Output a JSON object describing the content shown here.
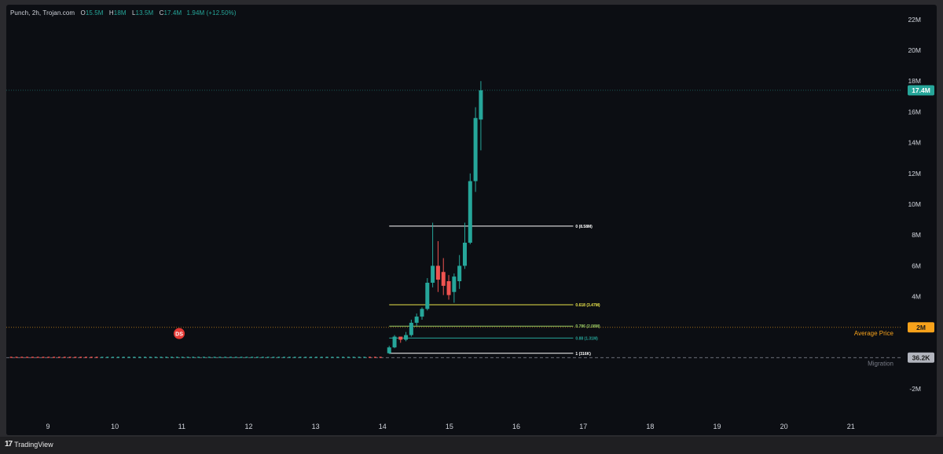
{
  "legend": {
    "symbol": "Punch, 2h, Trojan.com",
    "o_label": "O",
    "o_value": "15.5M",
    "h_label": "H",
    "h_value": "18M",
    "l_label": "L",
    "l_value": "13.5M",
    "c_label": "C",
    "c_value": "17.4M",
    "change": "1.94M (+12.50%)"
  },
  "colors": {
    "up": "#26a69a",
    "down": "#ef5350",
    "grid": "#1a1d24",
    "axis_text": "#d1d4dc",
    "avg_price": "#f7a21b",
    "migration": "#787b86",
    "fib_white": "#ffffff",
    "fib_yellow": "#e8e34a",
    "fib_lime": "#9ccc65",
    "fib_green": "#26a69a"
  },
  "price_axis": {
    "ticks": [
      {
        "label": "22M",
        "value": 22000000
      },
      {
        "label": "20M",
        "value": 20000000
      },
      {
        "label": "18M",
        "value": 18000000
      },
      {
        "label": "16M",
        "value": 16000000
      },
      {
        "label": "14M",
        "value": 14000000
      },
      {
        "label": "12M",
        "value": 12000000
      },
      {
        "label": "10M",
        "value": 10000000
      },
      {
        "label": "8M",
        "value": 8000000
      },
      {
        "label": "6M",
        "value": 6000000
      },
      {
        "label": "4M",
        "value": 4000000
      },
      {
        "label": "-2M",
        "value": -2000000
      }
    ],
    "current_price_label": "17.4M",
    "current_price_value": 17400000,
    "avg_price_badge": "2M",
    "avg_price_value": 2000000,
    "avg_price_text": "Average Price",
    "migration_badge": "36.2K",
    "migration_value": 36200,
    "migration_text": "Migration"
  },
  "time_axis": {
    "labels": [
      "9",
      "10",
      "11",
      "12",
      "13",
      "14",
      "15",
      "16",
      "17",
      "18",
      "19",
      "20",
      "21"
    ]
  },
  "marker": {
    "label": "DS",
    "day": 10.95,
    "value": 1600000
  },
  "fib_levels": [
    {
      "label": "0 (8.58M)",
      "value": 8580000,
      "color": "#ffffff"
    },
    {
      "label": "0.618 (3.47M)",
      "value": 3470000,
      "color": "#e8e34a"
    },
    {
      "label": "0.786 (2.08M)",
      "value": 2080000,
      "color": "#9ccc65"
    },
    {
      "label": "0.88 (1.31M)",
      "value": 1310000,
      "color": "#26a69a"
    },
    {
      "label": "1 (316K)",
      "value": 316000,
      "color": "#ffffff"
    }
  ],
  "fib_range": {
    "start_day": 14.1,
    "end_day": 16.85
  },
  "chart_data": {
    "type": "candlestick",
    "title": "Punch, 2h, Trojan.com",
    "x_axis": "day of month",
    "ylim": [
      -3000000,
      23000000
    ],
    "xlim": [
      8.45,
      22.2
    ],
    "candles": [
      {
        "x": 14.1,
        "o": 320000,
        "h": 800000,
        "l": 280000,
        "c": 700000
      },
      {
        "x": 14.18,
        "o": 700000,
        "h": 1500000,
        "l": 650000,
        "c": 1400000
      },
      {
        "x": 14.27,
        "o": 1400000,
        "h": 1300000,
        "l": 1000000,
        "c": 1200000
      },
      {
        "x": 14.35,
        "o": 1200000,
        "h": 1700000,
        "l": 1100000,
        "c": 1500000
      },
      {
        "x": 14.43,
        "o": 1500000,
        "h": 2500000,
        "l": 1400000,
        "c": 2300000
      },
      {
        "x": 14.51,
        "o": 2300000,
        "h": 2900000,
        "l": 2100000,
        "c": 2700000
      },
      {
        "x": 14.59,
        "o": 2700000,
        "h": 3300000,
        "l": 2500000,
        "c": 3200000
      },
      {
        "x": 14.67,
        "o": 3200000,
        "h": 5200000,
        "l": 3100000,
        "c": 4900000
      },
      {
        "x": 14.75,
        "o": 4900000,
        "h": 8800000,
        "l": 4600000,
        "c": 6000000
      },
      {
        "x": 14.83,
        "o": 6000000,
        "h": 7600000,
        "l": 4300000,
        "c": 5100000
      },
      {
        "x": 14.91,
        "o": 5600000,
        "h": 6500000,
        "l": 4100000,
        "c": 4700000
      },
      {
        "x": 14.99,
        "o": 5000000,
        "h": 5400000,
        "l": 3800000,
        "c": 4100000
      },
      {
        "x": 15.07,
        "o": 4300000,
        "h": 5500000,
        "l": 3600000,
        "c": 5300000
      },
      {
        "x": 15.15,
        "o": 5000000,
        "h": 6700000,
        "l": 4500000,
        "c": 6000000
      },
      {
        "x": 15.23,
        "o": 6000000,
        "h": 8800000,
        "l": 5800000,
        "c": 7500000
      },
      {
        "x": 15.31,
        "o": 7500000,
        "h": 12000000,
        "l": 7400000,
        "c": 11500000
      },
      {
        "x": 15.39,
        "o": 11500000,
        "h": 16300000,
        "l": 10800000,
        "c": 15600000
      },
      {
        "x": 15.47,
        "o": 15500000,
        "h": 18000000,
        "l": 13500000,
        "c": 17400000
      }
    ],
    "pre_launch_range": {
      "start_day": 8.45,
      "end_day": 14.05,
      "value": 36200
    }
  }
}
